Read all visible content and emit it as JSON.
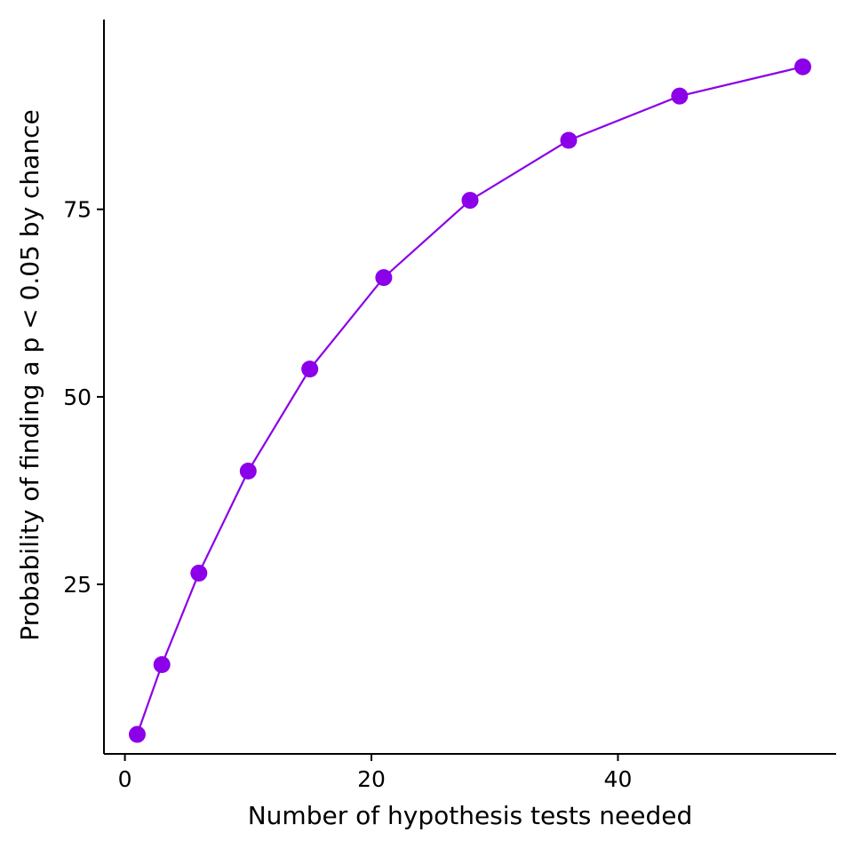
{
  "chart_data": {
    "type": "line",
    "title": "",
    "xlabel": "Number of hypothesis tests needed",
    "ylabel": "Probability of finding a p < 0.05 by chance",
    "xlim": [
      -1.7,
      57.7
    ],
    "ylim": [
      2.4,
      100.3
    ],
    "x_ticks": [
      0,
      20,
      40
    ],
    "y_ticks": [
      25,
      50,
      75
    ],
    "grid": false,
    "legend": "none",
    "series": [
      {
        "x": [
          1,
          3,
          6,
          10,
          15,
          21,
          28,
          36,
          45,
          55
        ],
        "y": [
          5,
          14.3,
          26.5,
          40.1,
          53.7,
          65.9,
          76.2,
          84.2,
          90.1,
          94.0
        ],
        "color": "#8B00E8",
        "markers": true
      }
    ]
  }
}
